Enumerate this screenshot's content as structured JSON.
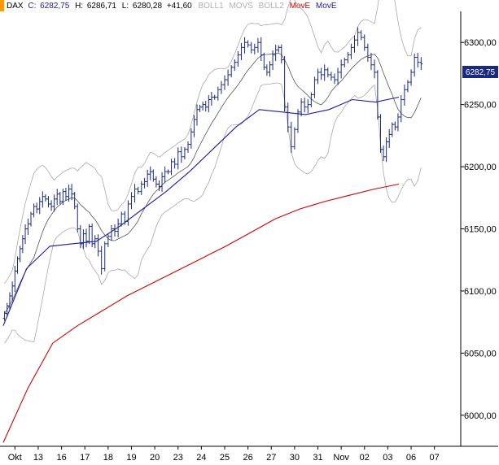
{
  "header": {
    "symbol": "DAX",
    "close_label": "C:",
    "close": "6282,75",
    "high_label": "H:",
    "high": "6286,71",
    "low_label": "L:",
    "low": "6280,28",
    "change": "+41,60",
    "indicators": [
      {
        "name": "BOLL1",
        "color": "#b0b0b0"
      },
      {
        "name": "MOVS",
        "color": "#b0b0b0"
      },
      {
        "name": "BOLL2",
        "color": "#b0b0b0"
      },
      {
        "name": "MovE",
        "color": "#cc0000"
      },
      {
        "name": "MovE",
        "color": "#1a1aa8"
      }
    ]
  },
  "last_price_tag": "6282,75",
  "colors": {
    "candles": "#1a2a80",
    "ema_long": "#d40000",
    "ema_short": "#1a1aa8",
    "bollinger": "#a8a8a8",
    "sma": "#555555",
    "price_tag_bg": "#1a2a80",
    "accent": "#ff9900"
  },
  "chart_data": {
    "type": "candlestick",
    "title": "DAX",
    "ylim": [
      5975,
      6325
    ],
    "y_ticks": [
      "6300,00",
      "6250,00",
      "6200,00",
      "6150,00",
      "6100,00",
      "6050,00",
      "6000,00"
    ],
    "y_tick_values": [
      6300,
      6250,
      6200,
      6150,
      6100,
      6050,
      6000
    ],
    "x_ticks": [
      "Okt",
      "13",
      "16",
      "17",
      "18",
      "19",
      "20",
      "23",
      "24",
      "25",
      "26",
      "27",
      "30",
      "31",
      "Nov",
      "02",
      "03",
      "06",
      "07"
    ],
    "days": [
      {
        "label": "Okt",
        "points": [
          6082,
          6088,
          6096,
          6104,
          6116,
          6126,
          6134,
          6142,
          6150
        ]
      },
      {
        "label": "13",
        "points": [
          6154,
          6162,
          6168,
          6166,
          6172,
          6176,
          6174,
          6170
        ]
      },
      {
        "label": "16",
        "points": [
          6168,
          6174,
          6178,
          6172,
          6180,
          6176,
          6182,
          6178
        ]
      },
      {
        "label": "17",
        "points": [
          6168,
          6150,
          6138,
          6146,
          6140,
          6152,
          6138,
          6142
        ]
      },
      {
        "label": "18",
        "points": [
          6132,
          6118,
          6138,
          6144,
          6150,
          6148,
          6154
        ]
      },
      {
        "label": "19",
        "points": [
          6162,
          6156,
          6170,
          6176,
          6182,
          6180,
          6186
        ]
      },
      {
        "label": "20",
        "points": [
          6188,
          6194,
          6196,
          6190,
          6186,
          6184,
          6192,
          6196
        ]
      },
      {
        "label": "23",
        "points": [
          6196,
          6204,
          6202,
          6212,
          6208,
          6214,
          6218
        ]
      },
      {
        "label": "24",
        "points": [
          6228,
          6238,
          6246,
          6248,
          6250,
          6248,
          6254,
          6256
        ]
      },
      {
        "label": "25",
        "points": [
          6256,
          6262,
          6266,
          6270,
          6274,
          6280,
          6284
        ]
      },
      {
        "label": "26",
        "points": [
          6290,
          6296,
          6300,
          6298,
          6294,
          6296,
          6300
        ]
      },
      {
        "label": "27",
        "points": [
          6290,
          6280,
          6276,
          6282,
          6290,
          6294,
          6296,
          6286
        ]
      },
      {
        "label": "30",
        "points": [
          6248,
          6232,
          6216,
          6230,
          6244,
          6252,
          6248
        ]
      },
      {
        "label": "31",
        "points": [
          6250,
          6258,
          6270,
          6276,
          6274,
          6278,
          6274
        ]
      },
      {
        "label": "Nov",
        "points": [
          6272,
          6270,
          6276,
          6282,
          6286,
          6290,
          6296
        ]
      },
      {
        "label": "02",
        "points": [
          6302,
          6308,
          6304,
          6296,
          6288,
          6282,
          6276
        ]
      },
      {
        "label": "03",
        "points": [
          6240,
          6214,
          6208,
          6220,
          6226,
          6234,
          6232,
          6240
        ]
      },
      {
        "label": "06",
        "points": [
          6254,
          6262,
          6268,
          6276,
          6288,
          6284,
          6282.75
        ]
      },
      {
        "label": "07",
        "points": []
      }
    ],
    "series": [
      {
        "name": "MovE",
        "color": "#d40000",
        "values": [
          5978,
          6022,
          6058,
          6072,
          6084,
          6096,
          6106,
          6116,
          6126,
          6136,
          6147,
          6158,
          6166,
          6172,
          6177,
          6182,
          6186
        ]
      },
      {
        "name": "MovE",
        "color": "#1a1aa8",
        "values": [
          6072,
          6118,
          6136,
          6138,
          6140,
          6152,
          6166,
          6180,
          6196,
          6214,
          6232,
          6246,
          6244,
          6242,
          6246,
          6254,
          6252,
          6256
        ]
      }
    ]
  }
}
